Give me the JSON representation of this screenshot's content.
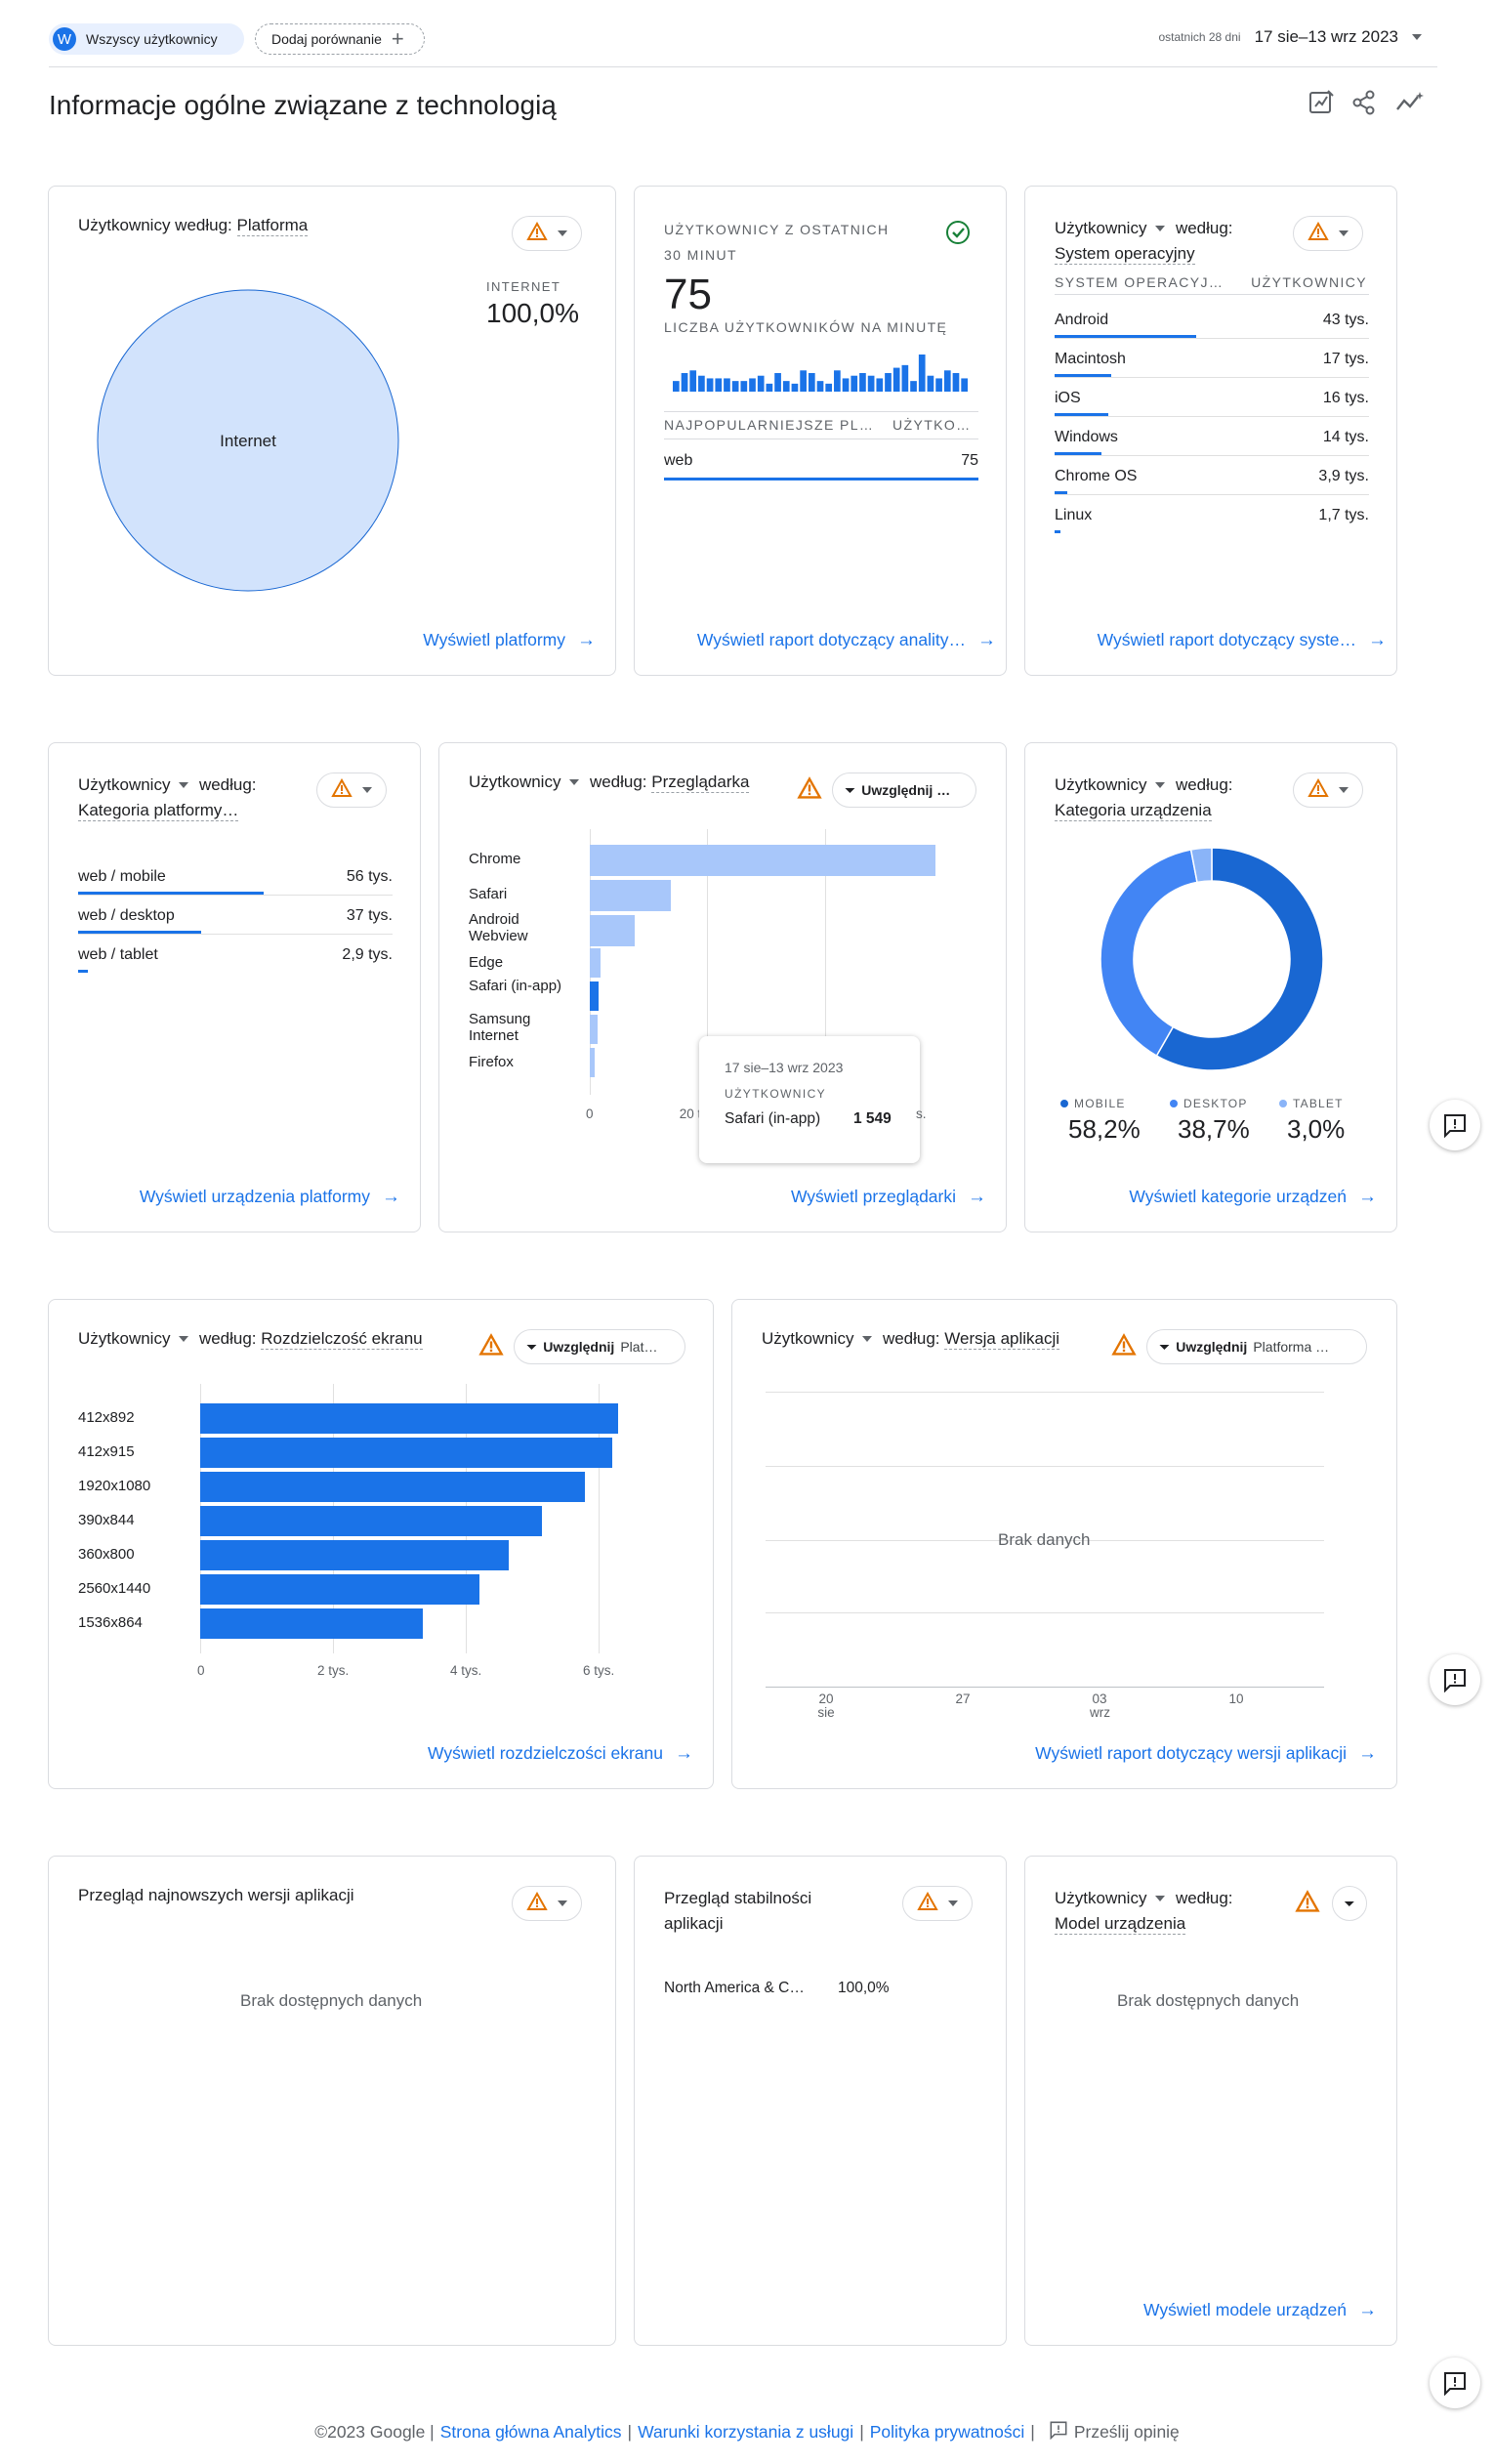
{
  "topbar": {
    "segment_avatar": "W",
    "segment_label": "Wszyscy użytkownicy",
    "compare_label": "Dodaj porównanie",
    "date_prefix": "ostatnich 28 dni",
    "date_range": "17 sie–13 wrz 2023"
  },
  "page_title": "Informacje ogólne związane z technologią",
  "cards": {
    "platform": {
      "title_a": "Użytkownicy według: ",
      "title_b": "Platforma",
      "legend_label": "INTERNET",
      "legend_value": "100,0%",
      "pie_label": "Internet",
      "link": "Wyświetl platformy"
    },
    "realtime": {
      "title_1": "UŻYTKOWNICY Z OSTATNICH",
      "title_2": "30 MINUT",
      "value": "75",
      "subtitle": "LICZBA UŻYTKOWNIKÓW NA MINUTĘ",
      "per_minute": [
        4,
        7,
        8,
        6,
        5,
        5,
        5,
        4,
        4,
        5,
        6,
        3,
        7,
        4,
        3,
        8,
        7,
        4,
        3,
        8,
        5,
        6,
        7,
        6,
        5,
        7,
        9,
        10,
        4,
        14,
        6,
        5,
        8,
        7,
        5
      ],
      "col_a": "NAJPOPULARNIEJSZE PL…",
      "col_b": "UŻYTKO…",
      "row_label": "web",
      "row_value": "75",
      "link": "Wyświetl raport dotyczący anality…"
    },
    "os": {
      "title_a": "Użytkownicy",
      "title_b": "według:",
      "title_c": "System operacyjny",
      "col_a": "SYSTEM OPERACYJ…",
      "col_b": "UŻYTKOWNICY",
      "rows": [
        {
          "label": "Android",
          "value": "43 tys.",
          "share": 0.45
        },
        {
          "label": "Macintosh",
          "value": "17 tys.",
          "share": 0.18
        },
        {
          "label": "iOS",
          "value": "16 tys.",
          "share": 0.17
        },
        {
          "label": "Windows",
          "value": "14 tys.",
          "share": 0.15
        },
        {
          "label": "Chrome OS",
          "value": "3,9 tys.",
          "share": 0.04
        },
        {
          "label": "Linux",
          "value": "1,7 tys.",
          "share": 0.02
        }
      ],
      "link": "Wyświetl raport dotyczący syste…"
    },
    "platform_category": {
      "title_a": "Użytkownicy",
      "title_b": "według:",
      "title_c": "Kategoria platformy…",
      "rows": [
        {
          "label": "web / mobile",
          "value": "56 tys.",
          "share": 0.59
        },
        {
          "label": "web / desktop",
          "value": "37 tys.",
          "share": 0.39
        },
        {
          "label": "web / tablet",
          "value": "2,9 tys.",
          "share": 0.03
        }
      ],
      "link": "Wyświetl urządzenia platformy"
    },
    "browser": {
      "title_a": "Użytkownicy",
      "title_b": "według:",
      "title_c": "Przeglądarka",
      "filter": "Uwzględnij …",
      "link": "Wyświetl przeglądarki",
      "tooltip_date": "17 sie–13 wrz 2023",
      "tooltip_metric": "UŻYTKOWNICY",
      "tooltip_label": "Safari (in-app)",
      "tooltip_value": "1 549",
      "tooltip_partial_right": "s."
    },
    "device_category": {
      "title_a": "Użytkownicy",
      "title_b": "według:",
      "title_c": "Kategoria urządzenia",
      "legend": [
        {
          "label": "MOBILE",
          "value": "58,2%",
          "color": "#1967d2"
        },
        {
          "label": "DESKTOP",
          "value": "38,7%",
          "color": "#4285f4"
        },
        {
          "label": "TABLET",
          "value": "3,0%",
          "color": "#8ab4f8"
        }
      ],
      "link": "Wyświetl kategorie urządzeń"
    },
    "resolution": {
      "title_a": "Użytkownicy",
      "title_b": "według:",
      "title_c": "Rozdzielczość ekranu",
      "filter_a": "Uwzględnij",
      "filter_b": "Plat…",
      "link": "Wyświetl rozdzielczości ekranu"
    },
    "app_version": {
      "title_a": "Użytkownicy",
      "title_b": "według:",
      "title_c": "Wersja aplikacji",
      "filter_a": "Uwzględnij",
      "filter_b": "Platforma …",
      "no_data": "Brak danych",
      "x_ticks": [
        {
          "top": "20",
          "bottom": "sie"
        },
        {
          "top": "27",
          "bottom": ""
        },
        {
          "top": "03",
          "bottom": "wrz"
        },
        {
          "top": "10",
          "bottom": ""
        }
      ],
      "link": "Wyświetl raport dotyczący wersji aplikacji"
    },
    "latest_versions": {
      "title": "Przegląd najnowszych wersji aplikacji",
      "no_data": "Brak dostępnych danych"
    },
    "stability": {
      "title_1": "Przegląd stabilności",
      "title_2": "aplikacji",
      "row_label": "North America & C…",
      "row_value": "100,0%"
    },
    "device_model": {
      "title_a": "Użytkownicy",
      "title_b": "według:",
      "title_c": "Model urządzenia",
      "no_data": "Brak dostępnych danych",
      "link": "Wyświetl modele urządzeń"
    }
  },
  "chart_data": [
    {
      "type": "pie",
      "categories": [
        "Internet"
      ],
      "values": [
        100.0
      ]
    },
    {
      "type": "bar",
      "orientation": "horizontal",
      "categories": [
        "Chrome",
        "Safari",
        "Android Webview",
        "Edge",
        "Safari (in-app)",
        "Samsung Internet",
        "Firefox"
      ],
      "values": [
        60000,
        14000,
        7800,
        1900,
        1549,
        1400,
        800
      ],
      "x_ticks": [
        "0",
        "20 t"
      ],
      "xlim": [
        0,
        60000
      ]
    },
    {
      "type": "pie",
      "donut": true,
      "categories": [
        "MOBILE",
        "DESKTOP",
        "TABLET"
      ],
      "values": [
        58.2,
        38.7,
        3.0
      ]
    },
    {
      "type": "bar",
      "orientation": "horizontal",
      "categories": [
        "412x892",
        "412x915",
        "1920x1080",
        "390x844",
        "360x800",
        "2560x1440",
        "1536x864"
      ],
      "values": [
        6300,
        6200,
        5800,
        5150,
        4650,
        4200,
        3350
      ],
      "x_ticks": [
        "0",
        "2 tys.",
        "4 tys.",
        "6 tys."
      ],
      "xlim": [
        0,
        7000
      ]
    }
  ],
  "footer": {
    "copyright": "©2023 Google |",
    "link1": "Strona główna Analytics",
    "sep": "|",
    "link2": "Warunki korzystania z usługi",
    "link3": "Polityka prywatności",
    "feedback": "Prześlij opinię"
  }
}
